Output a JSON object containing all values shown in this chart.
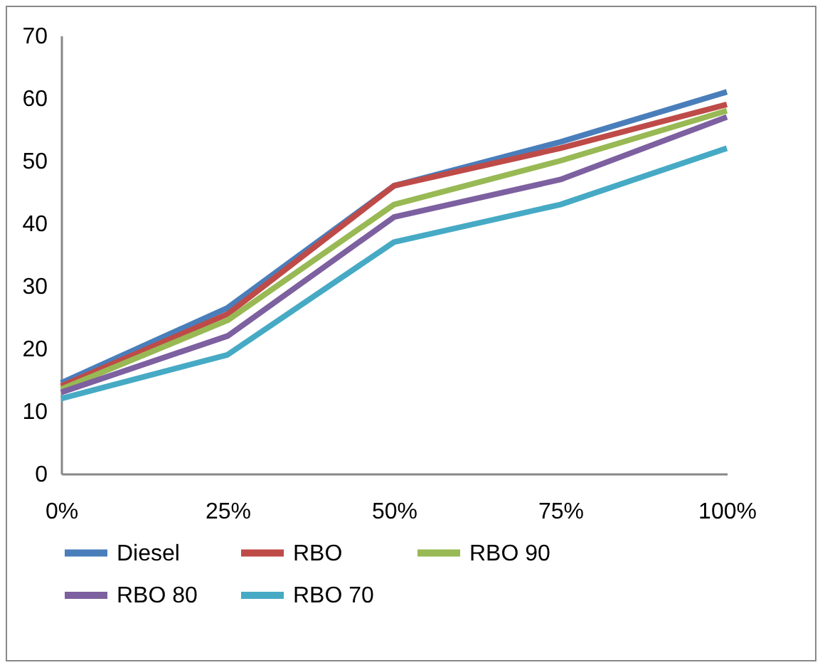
{
  "chart_data": {
    "type": "line",
    "categories": [
      "0%",
      "25%",
      "50%",
      "75%",
      "100%"
    ],
    "series": [
      {
        "name": "Diesel",
        "color": "#4a7ebb",
        "values": [
          14.5,
          26.5,
          46,
          53,
          61
        ]
      },
      {
        "name": "RBO",
        "color": "#be4b48",
        "values": [
          14,
          25.5,
          46,
          52,
          59
        ]
      },
      {
        "name": "RBO 90",
        "color": "#98b954",
        "values": [
          13.5,
          24.5,
          43,
          50,
          58
        ]
      },
      {
        "name": "RBO 80",
        "color": "#7d60a0",
        "values": [
          13,
          22,
          41,
          47,
          57
        ]
      },
      {
        "name": "RBO 70",
        "color": "#46aac5",
        "values": [
          12,
          19,
          37,
          43,
          52
        ]
      }
    ],
    "ylim": [
      0,
      70
    ],
    "yticks": [
      0,
      10,
      20,
      30,
      40,
      50,
      60,
      70
    ],
    "grid": false,
    "legend": "bottom",
    "marker": "none",
    "line_style": "solid"
  }
}
